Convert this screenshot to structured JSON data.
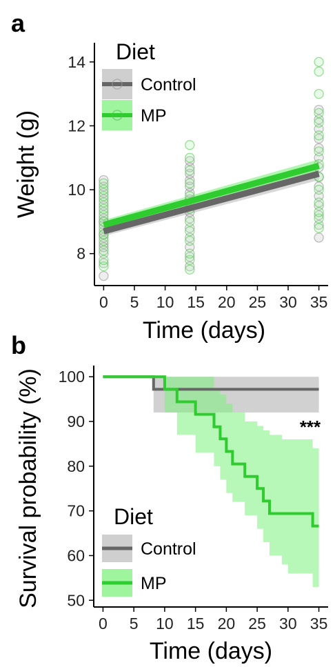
{
  "colors": {
    "control": "#666666",
    "control_band": "#bdbdbd",
    "mp": "#2ecc2e",
    "mp_band": "#7cf07c"
  },
  "chart_data": [
    {
      "panel": "a",
      "type": "scatter",
      "xlabel": "Time (days)",
      "ylabel": "Weight (g)",
      "xlim": [
        -1.5,
        36.5
      ],
      "ylim": [
        7.0,
        14.6
      ],
      "xticks": [
        0,
        5,
        10,
        15,
        20,
        25,
        30,
        35
      ],
      "yticks": [
        8,
        10,
        12,
        14
      ],
      "legend": {
        "title": "Diet",
        "position": "top-left",
        "entries": [
          "Control",
          "MP"
        ]
      },
      "fits": [
        {
          "name": "Control",
          "x": [
            0,
            35
          ],
          "y": [
            8.7,
            10.5
          ],
          "band_low": [
            8.55,
            10.3
          ],
          "band_high": [
            8.85,
            10.7
          ]
        },
        {
          "name": "MP",
          "x": [
            0,
            35
          ],
          "y": [
            8.9,
            10.75
          ],
          "band_low": [
            8.75,
            10.55
          ],
          "band_high": [
            9.05,
            10.95
          ]
        }
      ],
      "points": [
        {
          "series": "Control",
          "x": 0,
          "y": [
            7.3,
            7.7,
            8.0,
            8.3,
            8.5,
            8.7,
            8.9,
            9.1,
            9.3,
            9.5,
            9.7,
            9.9,
            10.1,
            10.3,
            8.2,
            8.6,
            9.0
          ]
        },
        {
          "series": "MP",
          "x": 0,
          "y": [
            7.6,
            7.8,
            8.1,
            8.4,
            8.8,
            9.0,
            9.2,
            9.4,
            9.6,
            9.8,
            10.0,
            10.2,
            8.6
          ]
        },
        {
          "series": "Control",
          "x": 14,
          "y": [
            7.6,
            7.9,
            8.2,
            8.5,
            8.8,
            9.1,
            9.3,
            9.5,
            9.7,
            9.9,
            10.1,
            10.3,
            10.5,
            10.7,
            10.9
          ]
        },
        {
          "series": "MP",
          "x": 14,
          "y": [
            7.5,
            7.8,
            8.4,
            8.7,
            9.0,
            9.4,
            9.8,
            10.2,
            10.6,
            11.0,
            11.4,
            8.0
          ]
        },
        {
          "series": "Control",
          "x": 35,
          "y": [
            8.5,
            8.9,
            9.2,
            9.5,
            9.8,
            10.1,
            10.4,
            10.7,
            11.0,
            11.3,
            11.6,
            11.9,
            12.2,
            12.5
          ]
        },
        {
          "series": "MP",
          "x": 35,
          "y": [
            8.8,
            9.1,
            9.6,
            10.0,
            10.4,
            10.8,
            11.2,
            11.7,
            12.1,
            12.4,
            13.0,
            13.7,
            14.0,
            9.3
          ]
        }
      ]
    },
    {
      "panel": "b",
      "type": "line",
      "xlabel": "Time (days)",
      "ylabel": "Survival probability (%)",
      "xlim": [
        -1.5,
        36.5
      ],
      "ylim": [
        48.5,
        102.5
      ],
      "xticks": [
        0,
        5,
        10,
        15,
        20,
        25,
        30,
        35
      ],
      "yticks": [
        50,
        60,
        70,
        80,
        90,
        100
      ],
      "legend": {
        "title": "Diet",
        "position": "bottom-left",
        "entries": [
          "Control",
          "MP"
        ]
      },
      "annotation": "***",
      "series": [
        {
          "name": "Control",
          "x": [
            0,
            8.2,
            35
          ],
          "y": [
            100,
            97.2,
            97.2
          ],
          "ci_low": [
            100,
            92,
            92
          ],
          "ci_high": [
            100,
            100,
            100
          ]
        },
        {
          "name": "MP",
          "x": [
            0,
            10,
            12,
            15,
            18,
            19,
            20,
            21,
            23,
            25,
            26,
            27,
            29,
            30,
            33,
            34,
            35
          ],
          "y": [
            100,
            97.2,
            94.4,
            91.6,
            88.8,
            86.1,
            83.3,
            80.5,
            77.7,
            75.0,
            72.2,
            69.4,
            69.4,
            69.4,
            69.4,
            66.6,
            66.6
          ],
          "ci_low": [
            100,
            92,
            87,
            83,
            80,
            77,
            74,
            72,
            69,
            66,
            63,
            60,
            58,
            56,
            56,
            53,
            53
          ],
          "ci_high": [
            100,
            100,
            100,
            100,
            97,
            96,
            94,
            92,
            90,
            89,
            88,
            87,
            86,
            86,
            86,
            84,
            84
          ]
        }
      ]
    }
  ]
}
